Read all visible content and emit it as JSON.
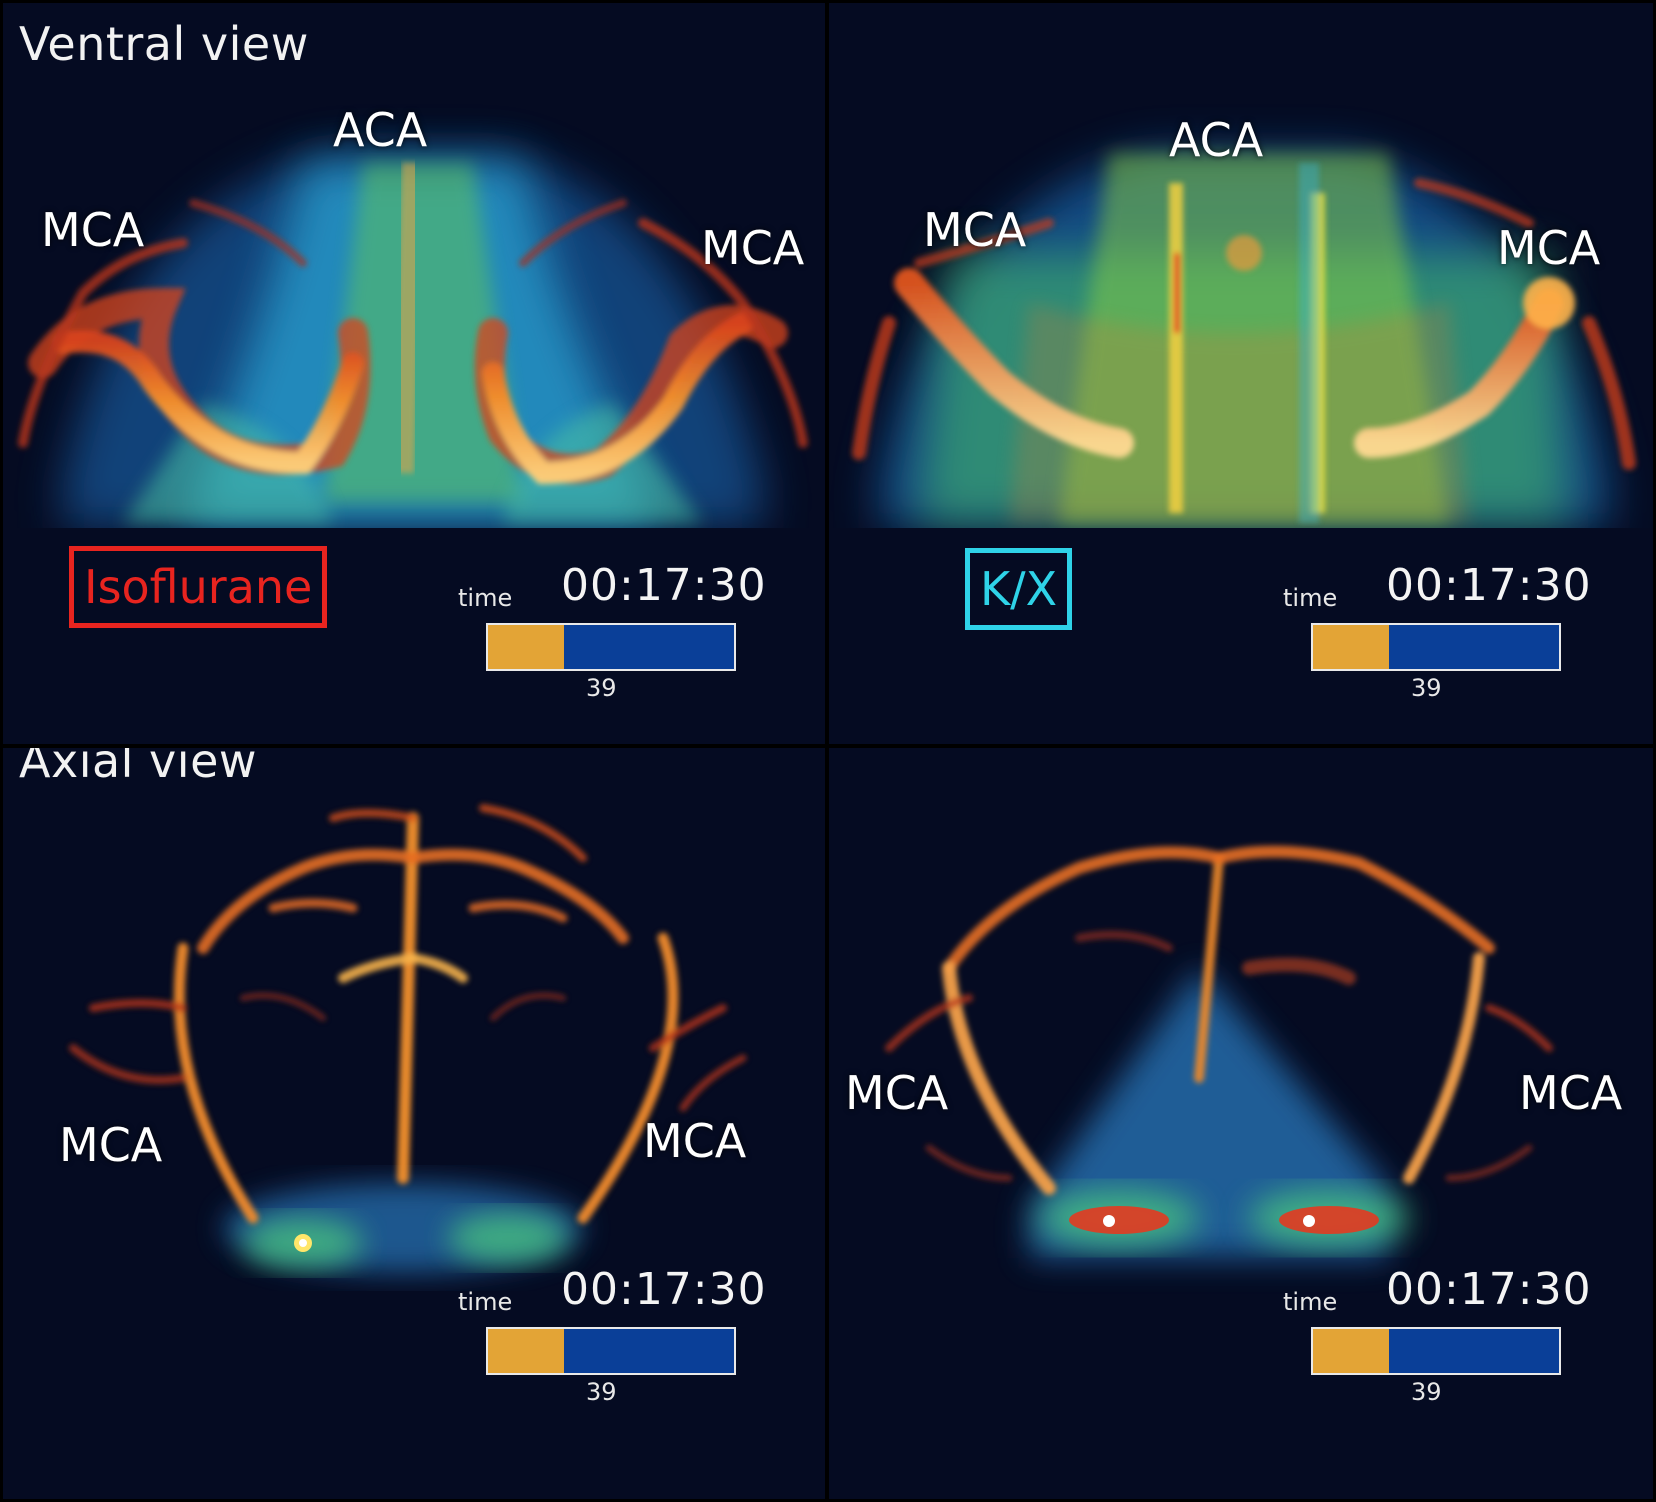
{
  "panels": {
    "top_left": {
      "title": "Ventral view",
      "labels": {
        "aca": "ACA",
        "mca_left": "MCA",
        "mca_right": "MCA"
      },
      "condition": {
        "text": "Isoflurane",
        "color": "#e8241f"
      },
      "time": {
        "label": "time",
        "clock": "00:17:30",
        "frame": "39",
        "progress": 0.31
      }
    },
    "top_right": {
      "labels": {
        "aca": "ACA",
        "mca_left": "MCA",
        "mca_right": "MCA"
      },
      "condition": {
        "text": "K/X",
        "color": "#2fd3e8"
      },
      "time": {
        "label": "time",
        "clock": "00:17:30",
        "frame": "39",
        "progress": 0.31
      }
    },
    "bottom_left": {
      "title": "Axial view",
      "labels": {
        "mca_left": "MCA",
        "mca_right": "MCA"
      },
      "time": {
        "label": "time",
        "clock": "00:17:30",
        "frame": "39",
        "progress": 0.31
      }
    },
    "bottom_right": {
      "labels": {
        "mca_left": "MCA",
        "mca_right": "MCA"
      },
      "time": {
        "label": "time",
        "clock": "00:17:30",
        "frame": "39",
        "progress": 0.31
      }
    }
  },
  "colors": {
    "background": "#050b22",
    "vessel_orange": "#f08a2a",
    "perfusion_cyan": "#2aa8d8",
    "perfusion_green": "#6ad04a",
    "progress_fill": "#e3a436",
    "progress_track": "#0a3f98"
  }
}
